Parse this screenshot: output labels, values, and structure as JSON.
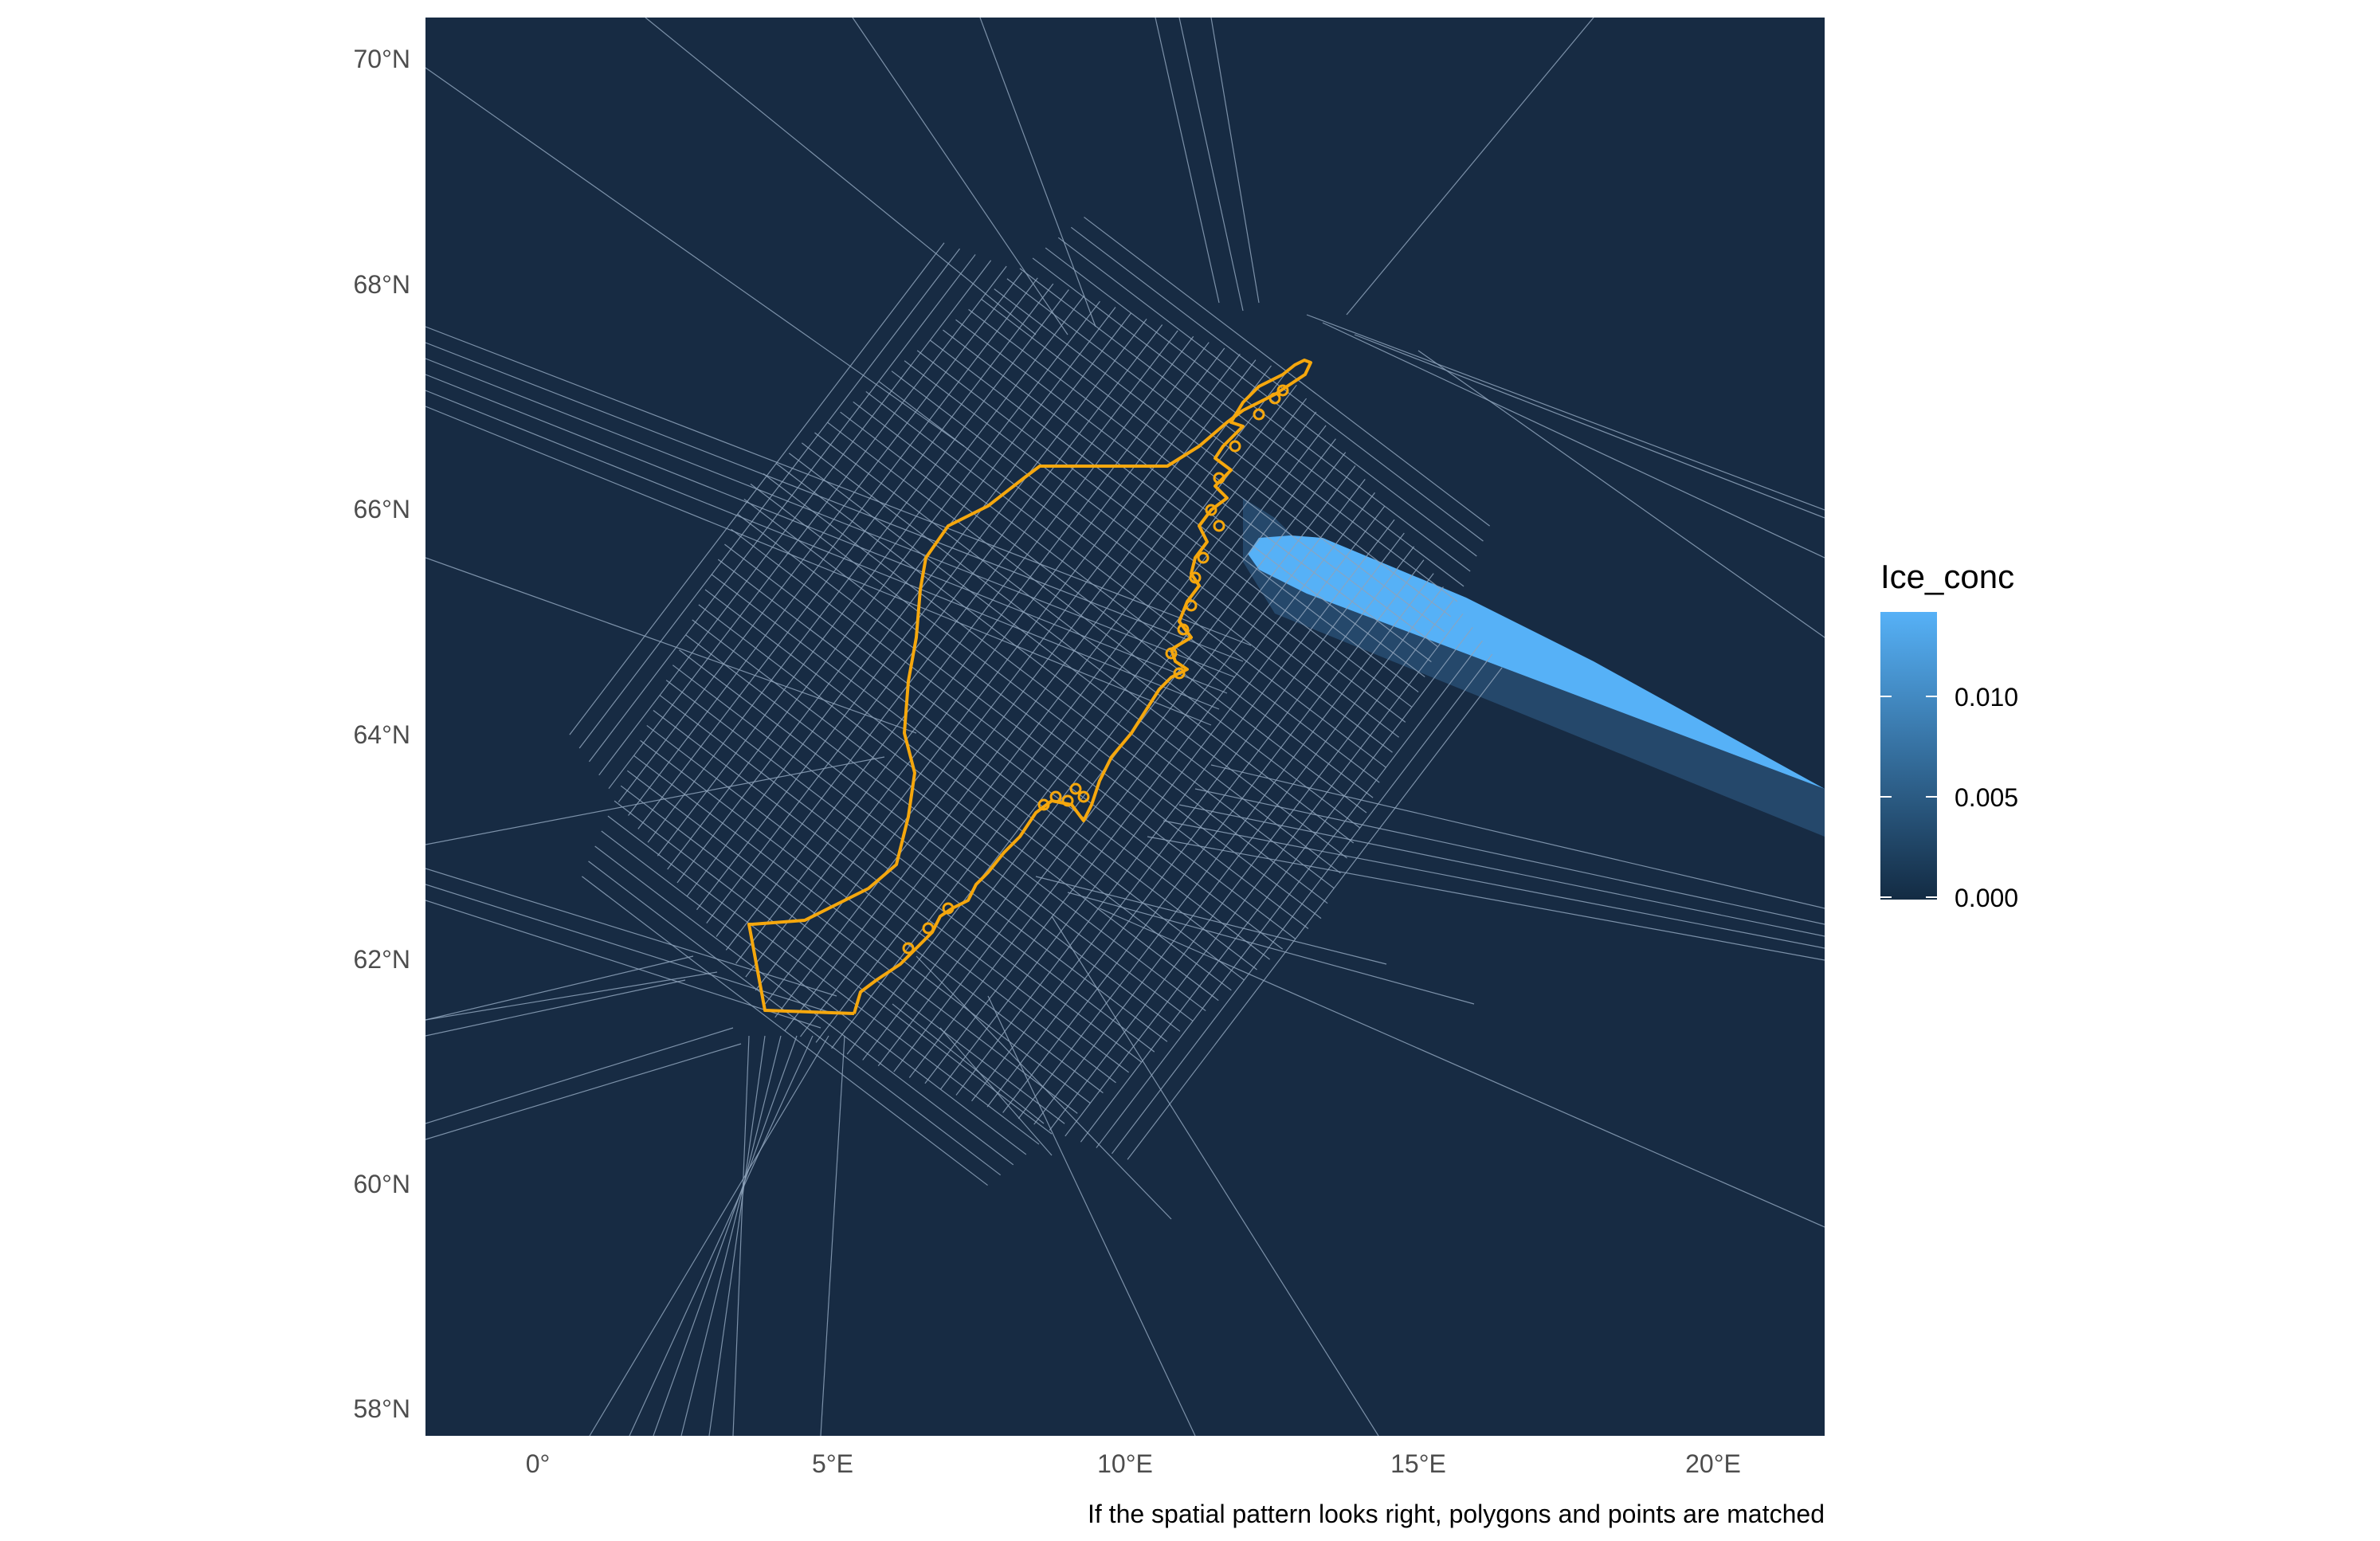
{
  "map": {
    "colors": {
      "ocean_fill": "#172b43",
      "mesh_line": "#8ea3bb",
      "coastline": "#f5a70d",
      "ice_high": "#56b1f7",
      "ice_mid": "#264a6e"
    },
    "y_axis_labels": [
      "70°N",
      "68°N",
      "66°N",
      "64°N",
      "62°N",
      "60°N",
      "58°N"
    ],
    "x_axis_labels": [
      "0°",
      "5°E",
      "10°E",
      "15°E",
      "20°E"
    ],
    "caption": "If the spatial pattern looks right, polygons and points are matched"
  },
  "legend": {
    "title": "Ice_conc",
    "tick_labels": [
      "0.010",
      "0.005",
      "0.000"
    ],
    "range": [
      0,
      0.0145
    ],
    "colors": {
      "low": "#132b43",
      "high": "#56b1f7"
    }
  }
}
